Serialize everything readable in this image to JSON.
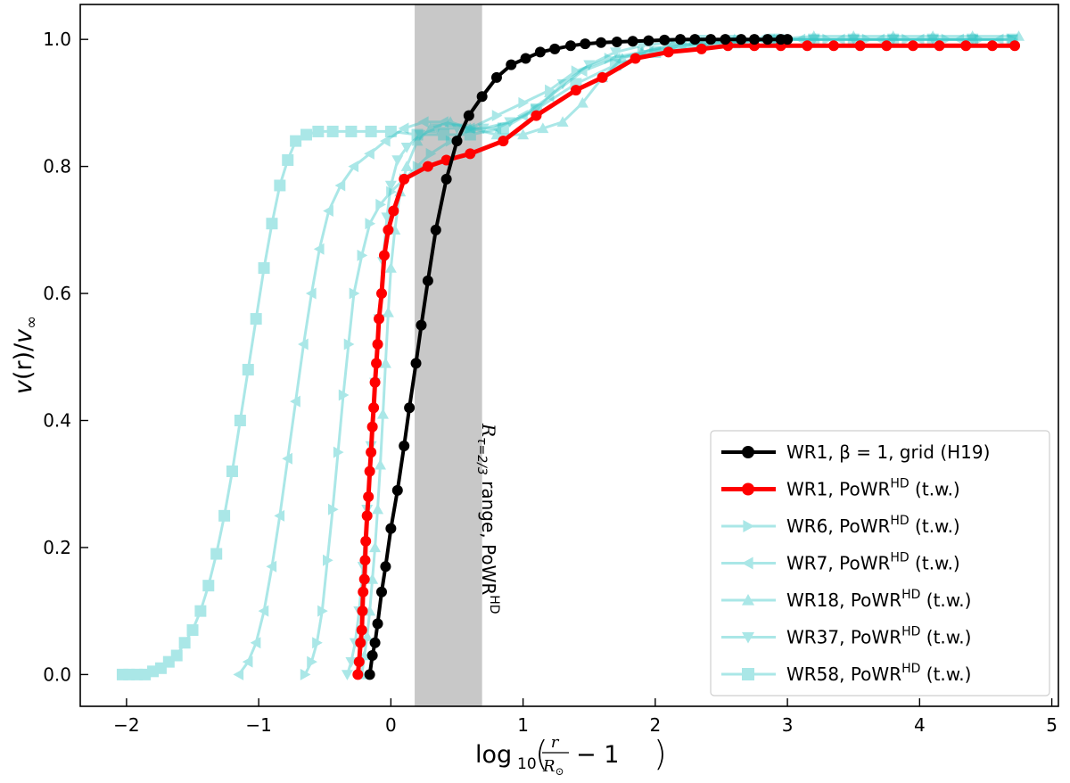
{
  "chart_data": {
    "type": "line",
    "xlabel": "log₁₀(r/R⊙ − 1)",
    "xlabel_parts": {
      "log": "log",
      "sub": "10",
      "frac_num": "r",
      "frac_den": "R",
      "den_sub": "⊙",
      "minus_one": "− 1"
    },
    "ylabel": "v(r)/v∞",
    "ylabel_parts": {
      "v": "v",
      "r": "(r)/",
      "vinf": "v",
      "inf": "∞"
    },
    "xlim": [
      -2.35,
      5.05
    ],
    "ylim": [
      -0.05,
      1.055
    ],
    "xticks": [
      -2,
      -1,
      0,
      1,
      2,
      3,
      4,
      5
    ],
    "xtick_labels": [
      "−2",
      "−1",
      "0",
      "1",
      "2",
      "3",
      "4",
      "5"
    ],
    "yticks": [
      0.0,
      0.2,
      0.4,
      0.6,
      0.8,
      1.0
    ],
    "ytick_labels": [
      "0.0",
      "0.2",
      "0.4",
      "0.6",
      "0.8",
      "1.0"
    ],
    "grid": false,
    "legend_position": "lower-right",
    "shaded_region": {
      "x_range": [
        0.18,
        0.69
      ],
      "color": "#c8c8c8",
      "label_parts": {
        "R": "R",
        "sub": "τ=2/3",
        "text": " range, PoWR",
        "sup": "HD"
      }
    },
    "series": [
      {
        "name": "WR1, β = 1, grid (H19)",
        "legend_parts": {
          "main": "WR1, β = 1, grid (H19)",
          "sup": ""
        },
        "color": "#000000",
        "marker": "circle",
        "alpha": 1.0,
        "line_width": 4,
        "x": [
          -0.16,
          -0.14,
          -0.12,
          -0.1,
          -0.07,
          -0.04,
          0.0,
          0.05,
          0.1,
          0.14,
          0.19,
          0.23,
          0.28,
          0.34,
          0.42,
          0.5,
          0.59,
          0.69,
          0.8,
          0.91,
          1.02,
          1.13,
          1.24,
          1.36,
          1.47,
          1.59,
          1.71,
          1.83,
          1.95,
          2.07,
          2.19,
          2.3,
          2.42,
          2.53,
          2.65,
          2.75,
          2.85,
          2.95,
          3.0
        ],
        "y": [
          0.0,
          0.03,
          0.05,
          0.08,
          0.13,
          0.17,
          0.23,
          0.29,
          0.36,
          0.42,
          0.49,
          0.55,
          0.62,
          0.7,
          0.78,
          0.84,
          0.88,
          0.91,
          0.94,
          0.96,
          0.97,
          0.98,
          0.985,
          0.99,
          0.993,
          0.995,
          0.996,
          0.997,
          0.998,
          0.999,
          1.0,
          1.0,
          1.0,
          1.0,
          1.0,
          1.0,
          1.0,
          1.0,
          1.0
        ]
      },
      {
        "name": "WR1, PoWR^HD (t.w.)",
        "legend_parts": {
          "main": "WR1, PoWR",
          "sup": "HD",
          "tail": " (t.w.)"
        },
        "color": "#ff0000",
        "marker": "circle",
        "alpha": 1.0,
        "line_width": 5,
        "x": [
          -0.25,
          -0.24,
          -0.23,
          -0.22,
          -0.215,
          -0.21,
          -0.2,
          -0.195,
          -0.19,
          -0.18,
          -0.17,
          -0.16,
          -0.15,
          -0.14,
          -0.13,
          -0.12,
          -0.11,
          -0.1,
          -0.09,
          -0.07,
          -0.05,
          -0.02,
          0.02,
          0.1,
          0.28,
          0.42,
          0.6,
          0.85,
          1.1,
          1.4,
          1.6,
          1.85,
          2.1,
          2.35,
          2.55,
          2.75,
          2.95,
          3.15,
          3.35,
          3.55,
          3.75,
          3.95,
          4.15,
          4.35,
          4.55,
          4.72
        ],
        "y": [
          0.0,
          0.02,
          0.05,
          0.07,
          0.1,
          0.13,
          0.15,
          0.18,
          0.21,
          0.25,
          0.28,
          0.32,
          0.35,
          0.39,
          0.42,
          0.46,
          0.49,
          0.52,
          0.56,
          0.6,
          0.66,
          0.7,
          0.73,
          0.78,
          0.8,
          0.81,
          0.82,
          0.84,
          0.88,
          0.92,
          0.94,
          0.97,
          0.98,
          0.985,
          0.99,
          0.99,
          0.99,
          0.99,
          0.99,
          0.99,
          0.99,
          0.99,
          0.99,
          0.99,
          0.99,
          0.99
        ]
      },
      {
        "name": "WR6, PoWR^HD (t.w.)",
        "legend_parts": {
          "main": "WR6, PoWR",
          "sup": "HD",
          "tail": " (t.w.)"
        },
        "color": "#2ec4c4",
        "marker": "triangle-right",
        "alpha": 0.4,
        "line_width": 3,
        "x": [
          -0.65,
          -0.6,
          -0.56,
          -0.52,
          -0.48,
          -0.44,
          -0.4,
          -0.36,
          -0.32,
          -0.28,
          -0.22,
          -0.16,
          -0.08,
          0.0,
          0.1,
          0.2,
          0.3,
          0.45,
          0.6,
          0.8,
          1.0,
          1.2,
          1.4,
          1.65,
          1.9,
          2.15,
          2.4,
          2.7,
          3.0,
          3.3,
          3.6,
          3.9,
          4.2,
          4.45,
          4.7
        ],
        "y": [
          0.0,
          0.02,
          0.05,
          0.1,
          0.18,
          0.26,
          0.35,
          0.44,
          0.52,
          0.6,
          0.66,
          0.71,
          0.74,
          0.76,
          0.78,
          0.8,
          0.82,
          0.84,
          0.86,
          0.88,
          0.9,
          0.92,
          0.95,
          0.97,
          0.98,
          0.99,
          0.995,
          0.997,
          1.0,
          1.0,
          1.0,
          1.0,
          1.0,
          1.0,
          1.0
        ]
      },
      {
        "name": "WR7, PoWR^HD (t.w.)",
        "legend_parts": {
          "main": "WR7, PoWR",
          "sup": "HD",
          "tail": " (t.w.)"
        },
        "color": "#2ec4c4",
        "marker": "triangle-left",
        "alpha": 0.4,
        "line_width": 3,
        "x": [
          -1.15,
          -1.08,
          -1.02,
          -0.96,
          -0.9,
          -0.84,
          -0.78,
          -0.72,
          -0.66,
          -0.6,
          -0.54,
          -0.47,
          -0.38,
          -0.28,
          -0.16,
          -0.04,
          0.1,
          0.25,
          0.4,
          0.6,
          0.8,
          1.0,
          1.2,
          1.45,
          1.7,
          1.95,
          2.2,
          2.5,
          2.8,
          3.1,
          3.4,
          3.7,
          4.0,
          4.3,
          4.6
        ],
        "y": [
          0.0,
          0.02,
          0.05,
          0.1,
          0.17,
          0.25,
          0.34,
          0.43,
          0.52,
          0.6,
          0.67,
          0.73,
          0.77,
          0.8,
          0.82,
          0.84,
          0.86,
          0.87,
          0.87,
          0.86,
          0.86,
          0.88,
          0.91,
          0.95,
          0.97,
          0.98,
          0.99,
          0.995,
          1.0,
          1.0,
          1.0,
          1.0,
          1.0,
          1.0,
          1.0
        ]
      },
      {
        "name": "WR18, PoWR^HD (t.w.)",
        "legend_parts": {
          "main": "WR18, PoWR",
          "sup": "HD",
          "tail": " (t.w.)"
        },
        "color": "#2ec4c4",
        "marker": "triangle-up",
        "alpha": 0.4,
        "line_width": 3,
        "x": [
          -0.22,
          -0.2,
          -0.18,
          -0.16,
          -0.14,
          -0.12,
          -0.1,
          -0.08,
          -0.06,
          -0.04,
          -0.02,
          0.0,
          0.03,
          0.07,
          0.12,
          0.2,
          0.3,
          0.45,
          0.6,
          0.8,
          1.0,
          1.15,
          1.3,
          1.45,
          1.6,
          1.75,
          1.9,
          2.1,
          2.35,
          2.6,
          2.9,
          3.2,
          3.5,
          3.8,
          4.1,
          4.4,
          4.75
        ],
        "y": [
          0.0,
          0.03,
          0.06,
          0.1,
          0.15,
          0.2,
          0.26,
          0.33,
          0.41,
          0.49,
          0.57,
          0.64,
          0.7,
          0.76,
          0.8,
          0.84,
          0.86,
          0.87,
          0.86,
          0.85,
          0.85,
          0.86,
          0.87,
          0.9,
          0.94,
          0.97,
          0.98,
          0.99,
          0.995,
          1.0,
          1.0,
          1.005,
          1.005,
          1.005,
          1.005,
          1.005,
          1.005
        ]
      },
      {
        "name": "WR37, PoWR^HD (t.w.)",
        "legend_parts": {
          "main": "WR37, PoWR",
          "sup": "HD",
          "tail": " (t.w.)"
        },
        "color": "#2ec4c4",
        "marker": "triangle-down",
        "alpha": 0.4,
        "line_width": 3,
        "x": [
          -0.33,
          -0.3,
          -0.27,
          -0.24,
          -0.21,
          -0.18,
          -0.15,
          -0.12,
          -0.09,
          -0.06,
          -0.03,
          0.0,
          0.05,
          0.12,
          0.22,
          0.35,
          0.5,
          0.7,
          0.9,
          1.1,
          1.3,
          1.5,
          1.7,
          1.9,
          2.1,
          2.35,
          2.6,
          2.9,
          3.2,
          3.5,
          3.8,
          4.1,
          4.4,
          4.7
        ],
        "y": [
          0.0,
          0.02,
          0.05,
          0.1,
          0.17,
          0.26,
          0.36,
          0.46,
          0.56,
          0.65,
          0.72,
          0.77,
          0.81,
          0.83,
          0.85,
          0.86,
          0.86,
          0.86,
          0.87,
          0.89,
          0.93,
          0.96,
          0.98,
          0.99,
          0.995,
          1.0,
          1.0,
          1.0,
          1.0,
          1.0,
          1.0,
          1.0,
          1.0,
          1.0
        ]
      },
      {
        "name": "WR58, PoWR^HD (t.w.)",
        "legend_parts": {
          "main": "WR58, PoWR",
          "sup": "HD",
          "tail": " (t.w.)"
        },
        "color": "#2ec4c4",
        "marker": "square",
        "alpha": 0.4,
        "line_width": 3,
        "x": [
          -2.03,
          -1.98,
          -1.92,
          -1.86,
          -1.8,
          -1.74,
          -1.68,
          -1.62,
          -1.56,
          -1.5,
          -1.44,
          -1.38,
          -1.32,
          -1.26,
          -1.2,
          -1.14,
          -1.08,
          -1.02,
          -0.96,
          -0.9,
          -0.84,
          -0.78,
          -0.72,
          -0.64,
          -0.55,
          -0.44,
          -0.3,
          -0.15,
          0.0,
          0.2,
          0.4,
          0.6,
          0.85,
          1.1,
          1.4,
          1.7,
          2.0,
          2.3,
          2.6,
          2.9,
          3.2,
          3.5,
          3.8,
          4.1,
          4.4,
          4.7
        ],
        "y": [
          0.0,
          0.0,
          0.0,
          0.0,
          0.005,
          0.01,
          0.02,
          0.03,
          0.05,
          0.07,
          0.1,
          0.14,
          0.19,
          0.25,
          0.32,
          0.4,
          0.48,
          0.56,
          0.64,
          0.71,
          0.77,
          0.81,
          0.84,
          0.85,
          0.855,
          0.855,
          0.855,
          0.855,
          0.855,
          0.85,
          0.85,
          0.85,
          0.86,
          0.89,
          0.93,
          0.96,
          0.98,
          0.99,
          0.995,
          1.0,
          1.0,
          1.0,
          1.0,
          1.0,
          1.0,
          1.0
        ]
      }
    ]
  }
}
